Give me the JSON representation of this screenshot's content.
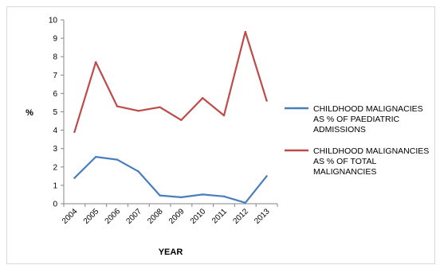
{
  "chart_data": {
    "type": "line",
    "title": "",
    "xlabel": "YEAR",
    "ylabel": "%",
    "ylim": [
      0,
      10
    ],
    "yticks": [
      0,
      1,
      2,
      3,
      4,
      5,
      6,
      7,
      8,
      9,
      10
    ],
    "grid": false,
    "legend_position": "right",
    "categories": [
      "2004",
      "2005",
      "2006",
      "2007",
      "2008",
      "2009",
      "2010",
      "2011",
      "2012",
      "2013"
    ],
    "series": [
      {
        "name_lines": [
          "CHILDHOOD MALIGNACIES",
          "AS % OF PAEDIATRIC",
          "ADMISSIONS"
        ],
        "color": "#4a7ebb",
        "values": [
          1.4,
          2.55,
          2.4,
          1.75,
          0.45,
          0.35,
          0.5,
          0.4,
          0.05,
          1.5
        ]
      },
      {
        "name_lines": [
          "CHILDHOOD MALIGNANCIES",
          "AS % OF TOTAL",
          "MALIGNANCIES"
        ],
        "color": "#be4b48",
        "values": [
          3.9,
          7.7,
          5.3,
          5.05,
          5.25,
          4.55,
          5.75,
          4.8,
          9.35,
          5.6
        ]
      }
    ]
  }
}
